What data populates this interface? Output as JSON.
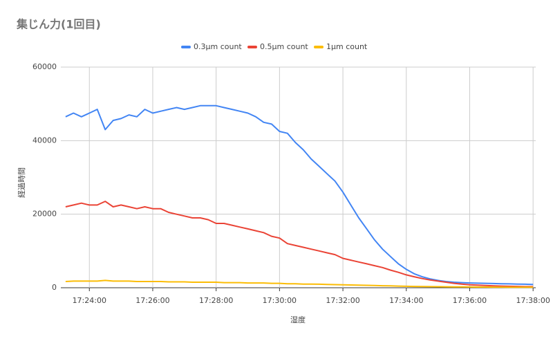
{
  "chart_data": {
    "type": "line",
    "title": "集じん力(1回目)",
    "x_label": "湿度",
    "y_label": "経過時間",
    "x": [
      "17:23:15",
      "17:23:30",
      "17:23:45",
      "17:24:00",
      "17:24:15",
      "17:24:30",
      "17:24:45",
      "17:25:00",
      "17:25:15",
      "17:25:30",
      "17:25:45",
      "17:26:00",
      "17:26:15",
      "17:26:30",
      "17:26:45",
      "17:27:00",
      "17:27:15",
      "17:27:30",
      "17:27:45",
      "17:28:00",
      "17:28:15",
      "17:28:30",
      "17:28:45",
      "17:29:00",
      "17:29:15",
      "17:29:30",
      "17:29:45",
      "17:30:00",
      "17:30:15",
      "17:30:30",
      "17:30:45",
      "17:31:00",
      "17:31:15",
      "17:31:30",
      "17:31:45",
      "17:32:00",
      "17:32:15",
      "17:32:30",
      "17:32:45",
      "17:33:00",
      "17:33:15",
      "17:33:30",
      "17:33:45",
      "17:34:00",
      "17:34:15",
      "17:34:30",
      "17:34:45",
      "17:35:00",
      "17:35:15",
      "17:35:30",
      "17:35:45",
      "17:36:00",
      "17:36:15",
      "17:36:30",
      "17:36:45",
      "17:37:00",
      "17:37:15",
      "17:37:30",
      "17:37:45",
      "17:38:00"
    ],
    "series": [
      {
        "name": "0.3µm count",
        "color": "#4285f4",
        "values": [
          46500,
          47500,
          46500,
          47500,
          48500,
          43000,
          45500,
          46000,
          47000,
          46500,
          48500,
          47500,
          48000,
          48500,
          49000,
          48500,
          49000,
          49500,
          49500,
          49500,
          49000,
          48500,
          48000,
          47500,
          46500,
          45000,
          44500,
          42500,
          42000,
          39500,
          37500,
          35000,
          33000,
          31000,
          29000,
          26000,
          22500,
          19000,
          16000,
          13000,
          10500,
          8500,
          6500,
          5000,
          3800,
          3000,
          2400,
          2000,
          1700,
          1500,
          1400,
          1300,
          1250,
          1200,
          1150,
          1100,
          1050,
          1000,
          950,
          900
        ]
      },
      {
        "name": "0.5µm count",
        "color": "#ea4335",
        "values": [
          22000,
          22500,
          23000,
          22500,
          22500,
          23500,
          22000,
          22500,
          22000,
          21500,
          22000,
          21500,
          21500,
          20500,
          20000,
          19500,
          19000,
          19000,
          18500,
          17500,
          17500,
          17000,
          16500,
          16000,
          15500,
          15000,
          14000,
          13500,
          12000,
          11500,
          11000,
          10500,
          10000,
          9500,
          9000,
          8000,
          7500,
          7000,
          6500,
          6000,
          5500,
          4800,
          4200,
          3500,
          3000,
          2500,
          2100,
          1800,
          1500,
          1200,
          1000,
          800,
          700,
          600,
          500,
          450,
          400,
          350,
          300,
          300
        ]
      },
      {
        "name": "1µm count",
        "color": "#fbbc04",
        "values": [
          1700,
          1800,
          1800,
          1800,
          1800,
          2000,
          1800,
          1800,
          1800,
          1700,
          1700,
          1700,
          1700,
          1600,
          1600,
          1600,
          1500,
          1500,
          1500,
          1500,
          1400,
          1400,
          1400,
          1300,
          1300,
          1300,
          1200,
          1200,
          1100,
          1100,
          1000,
          1000,
          950,
          900,
          850,
          800,
          750,
          700,
          650,
          600,
          550,
          500,
          450,
          400,
          350,
          320,
          300,
          280,
          260,
          240,
          220,
          200,
          190,
          180,
          170,
          160,
          150,
          150,
          140,
          130
        ]
      }
    ],
    "xlim": [
      "17:23:06",
      "17:38:05"
    ],
    "xticks": [
      "17:24:00",
      "17:26:00",
      "17:28:00",
      "17:30:00",
      "17:32:00",
      "17:34:00",
      "17:36:00",
      "17:38:00"
    ],
    "ylim": [
      0,
      60000
    ],
    "yticks": [
      0,
      20000,
      40000,
      60000
    ],
    "grid": true,
    "legend": "top"
  }
}
